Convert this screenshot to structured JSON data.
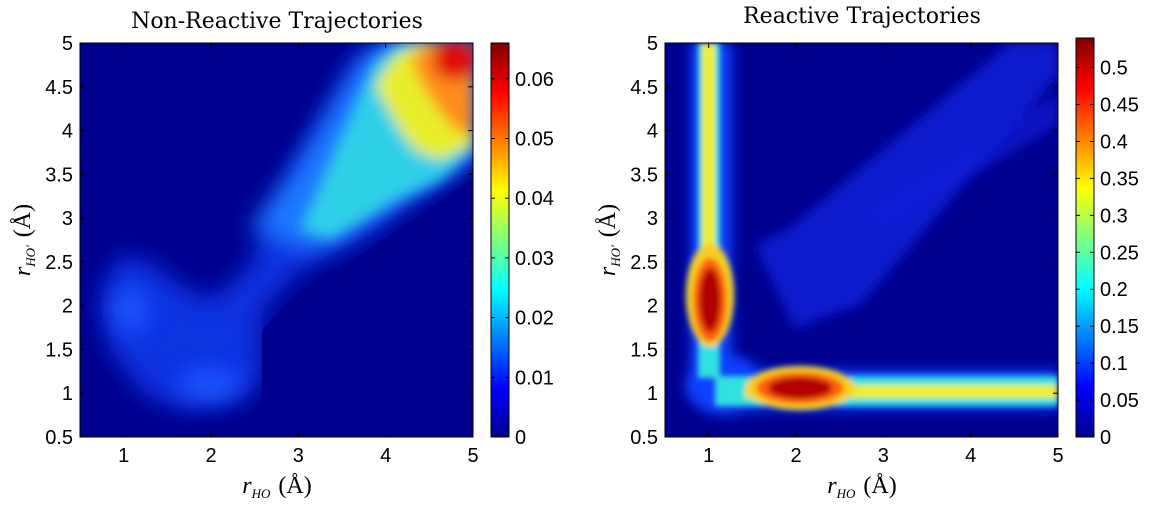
{
  "chart_data": [
    {
      "type": "heatmap",
      "title": "Non-Reactive Trajectories",
      "xlabel": {
        "var": "r",
        "sub": "HO",
        "unit": "(Å)"
      },
      "ylabel": {
        "var": "r",
        "sub": "HO'",
        "unit": "(Å)"
      },
      "xlim": [
        0.5,
        5
      ],
      "ylim": [
        0.5,
        5
      ],
      "xticks": [
        "1",
        "2",
        "3",
        "4",
        "5"
      ],
      "yticks": [
        "0.5",
        "1",
        "1.5",
        "2",
        "2.5",
        "3",
        "3.5",
        "4",
        "4.5",
        "5"
      ],
      "colorbar": {
        "min": 0,
        "max": 0.066,
        "ticks": [
          "0",
          "0.01",
          "0.02",
          "0.03",
          "0.04",
          "0.05",
          "0.06"
        ],
        "colormap": "jet"
      },
      "density_features": [
        {
          "feature": "diagonal band",
          "from": [
            0.7,
            2.1
          ],
          "to": [
            5.0,
            5.0
          ],
          "value": 0.012
        },
        {
          "feature": "upper lobe",
          "x": 2.0,
          "y": 1.1,
          "value": 0.012
        },
        {
          "feature": "left lobe",
          "x": 0.95,
          "y": 1.9,
          "value": 0.011
        },
        {
          "feature": "ridge",
          "x": 3.3,
          "y": 3.5,
          "value": 0.028
        },
        {
          "feature": "ridge",
          "x": 3.7,
          "y": 4.5,
          "value": 0.038
        },
        {
          "feature": "ridge",
          "x": 4.1,
          "y": 3.8,
          "value": 0.04
        },
        {
          "feature": "maximum",
          "x": 4.6,
          "y": 4.8,
          "value": 0.065
        }
      ]
    },
    {
      "type": "heatmap",
      "title": "Reactive Trajectories",
      "xlabel": {
        "var": "r",
        "sub": "HO",
        "unit": "(Å)"
      },
      "ylabel": {
        "var": "r",
        "sub": "HO'",
        "unit": "(Å)"
      },
      "xlim": [
        0.5,
        5
      ],
      "ylim": [
        0.5,
        5
      ],
      "xticks": [
        "1",
        "2",
        "3",
        "4",
        "5"
      ],
      "yticks": [
        "0.5",
        "1",
        "1.5",
        "2",
        "2.5",
        "3",
        "3.5",
        "4",
        "4.5",
        "5"
      ],
      "colorbar": {
        "min": 0,
        "max": 0.54,
        "ticks": [
          "0",
          "0.05",
          "0.1",
          "0.15",
          "0.2",
          "0.25",
          "0.3",
          "0.35",
          "0.4",
          "0.45",
          "0.5"
        ],
        "colormap": "jet"
      },
      "density_features": [
        {
          "feature": "vertical band",
          "x": 1.0,
          "y_range": [
            1.0,
            5.0
          ],
          "value": 0.3
        },
        {
          "feature": "horizontal band",
          "y": 0.98,
          "x_range": [
            1.0,
            5.0
          ],
          "value": 0.3
        },
        {
          "feature": "maximum",
          "x": 1.0,
          "y": 2.1,
          "value": 0.53
        },
        {
          "feature": "maximum",
          "x": 2.1,
          "y": 1.0,
          "value": 0.53
        },
        {
          "feature": "faint diagonal band",
          "from": [
            1.5,
            1.9
          ],
          "to": [
            5.0,
            5.0
          ],
          "value": 0.06
        }
      ]
    }
  ]
}
